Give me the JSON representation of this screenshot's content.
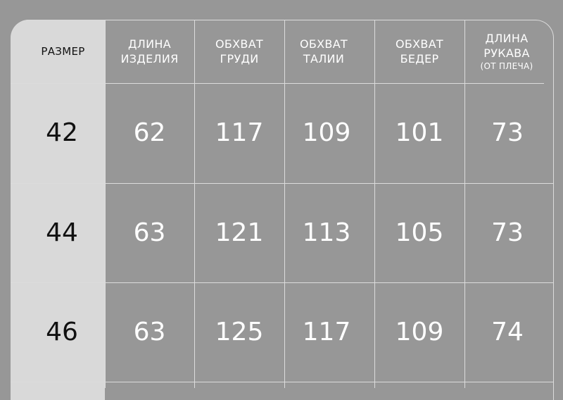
{
  "colors": {
    "background": "#979797",
    "size_column": "#d9d9d9",
    "lines": "#dcdcdc",
    "header_text": "#ffffff",
    "size_text": "#111111"
  },
  "headers": [
    {
      "lines": [
        "РАЗМЕР"
      ],
      "note": ""
    },
    {
      "lines": [
        "ДЛИНА",
        "ИЗДЕЛИЯ"
      ],
      "note": ""
    },
    {
      "lines": [
        "ОБХВАТ",
        "ГРУДИ"
      ],
      "note": ""
    },
    {
      "lines": [
        "ОБХВАТ",
        "ТАЛИИ"
      ],
      "note": ""
    },
    {
      "lines": [
        "ОБХВАТ",
        "БЕДЕР"
      ],
      "note": ""
    },
    {
      "lines": [
        "ДЛИНА",
        "РУКАВА"
      ],
      "note": "(ОТ ПЛЕЧА)"
    }
  ],
  "rows": [
    [
      "42",
      "62",
      "117",
      "109",
      "101",
      "73"
    ],
    [
      "44",
      "63",
      "121",
      "113",
      "105",
      "73"
    ],
    [
      "46",
      "63",
      "125",
      "117",
      "109",
      "74"
    ]
  ]
}
